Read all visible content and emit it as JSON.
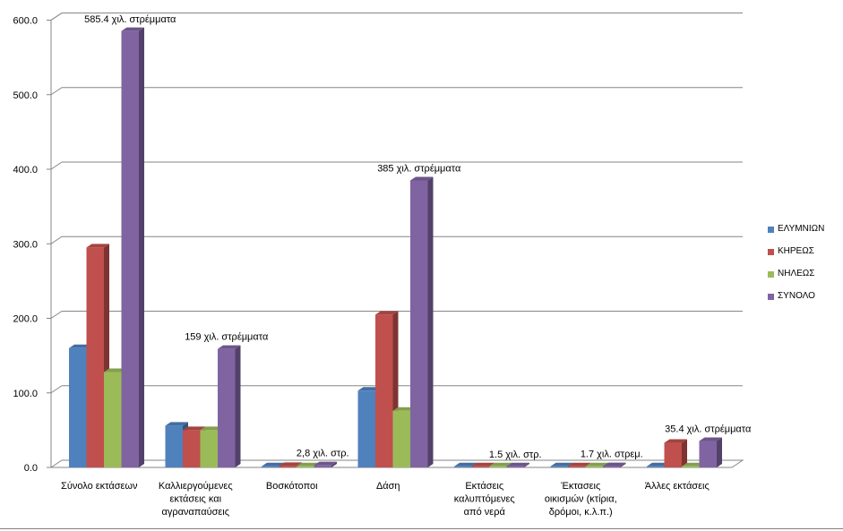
{
  "chart_data": {
    "type": "bar",
    "title": "",
    "xlabel": "",
    "ylabel": "",
    "ylim": [
      0,
      600
    ],
    "y_ticks": [
      "0.0",
      "100.0",
      "200.0",
      "300.0",
      "400.0",
      "500.0",
      "600.0"
    ],
    "categories": [
      [
        "Σύνολο εκτάσεων"
      ],
      [
        "Καλλιεργούμενες",
        "εκτάσεις και",
        "αγραναπαύσεις"
      ],
      [
        "Βοσκότοποι"
      ],
      [
        "Δάση"
      ],
      [
        "Εκτάσεις",
        "καλυπτόμενες",
        "από νερά"
      ],
      [
        "Έκτασεις",
        "οικισμών (κτίρια,",
        "δρόμοι, κ.λ.π.)"
      ],
      [
        "Άλλες εκτάσεις"
      ]
    ],
    "series": [
      {
        "name": "ΕΛΥΜΝΙΩΝ",
        "color": "#4f81bd",
        "values": [
          160,
          56,
          0.5,
          103,
          0.3,
          0.5,
          1
        ]
      },
      {
        "name": "ΚΗΡΕΩΣ",
        "color": "#c0504d",
        "values": [
          295,
          50,
          2,
          205,
          1,
          1,
          33
        ]
      },
      {
        "name": "ΝΗΛΕΩΣ",
        "color": "#9bbb59",
        "values": [
          128,
          50,
          0.3,
          76,
          0.2,
          0.3,
          1.5
        ]
      },
      {
        "name": "ΣΥΝΟΛΟ",
        "color": "#8064a2",
        "values": [
          585.4,
          159,
          2.8,
          385,
          1.5,
          1.7,
          35.4
        ]
      }
    ],
    "annotations": [
      {
        "category_index": 0,
        "text": "585.4 χιλ. στρέμματα"
      },
      {
        "category_index": 1,
        "text": "159 χιλ. στρέμματα"
      },
      {
        "category_index": 2,
        "text": "2,8 χιλ. στρ."
      },
      {
        "category_index": 3,
        "text": "385  χιλ. στρέμματα"
      },
      {
        "category_index": 4,
        "text": "1.5 χιλ. στρ."
      },
      {
        "category_index": 5,
        "text": "1.7  χιλ. στρεμ."
      },
      {
        "category_index": 6,
        "text": "35.4  χιλ. στρέμματα"
      }
    ],
    "grid": true,
    "legend_position": "right",
    "three_d": true
  }
}
